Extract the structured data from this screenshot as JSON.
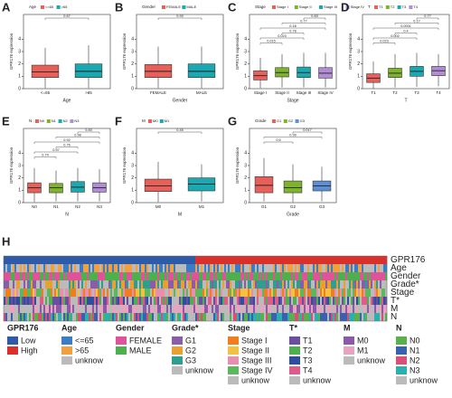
{
  "chart_data": [
    {
      "type": "box",
      "panel": "A",
      "legend_title": "Age",
      "categories": [
        "<=65",
        ">65"
      ],
      "colors": [
        "#e8605a",
        "#1aa9b0"
      ],
      "xlabel": "Age",
      "ylabel": "GPR176 expression",
      "ylim": [
        0,
        6
      ],
      "yticks": [
        0,
        1,
        2,
        3,
        4
      ],
      "boxes": [
        {
          "low": 0.05,
          "q1": 0.9,
          "median": 1.35,
          "q3": 1.9,
          "high": 3.3
        },
        {
          "low": 0.05,
          "q1": 0.9,
          "median": 1.4,
          "q3": 2.0,
          "high": 3.5
        }
      ],
      "comparisons": [
        {
          "pair": [
            0,
            1
          ],
          "p": 0.67
        }
      ]
    },
    {
      "type": "box",
      "panel": "B",
      "legend_title": "Gender",
      "categories": [
        "FEMALE",
        "MALE"
      ],
      "colors": [
        "#e8605a",
        "#1aa9b0"
      ],
      "xlabel": "Gender",
      "ylabel": "GPR176 expression",
      "ylim": [
        0,
        6
      ],
      "yticks": [
        0,
        1,
        2,
        3,
        4
      ],
      "boxes": [
        {
          "low": 0.05,
          "q1": 0.9,
          "median": 1.4,
          "q3": 1.95,
          "high": 3.4
        },
        {
          "low": 0.05,
          "q1": 0.9,
          "median": 1.4,
          "q3": 2.0,
          "high": 3.4
        }
      ],
      "comparisons": [
        {
          "pair": [
            0,
            1
          ],
          "p": 0.93
        }
      ]
    },
    {
      "type": "box",
      "panel": "C",
      "legend_title": "Stage",
      "categories": [
        "Stage I",
        "Stage II",
        "Stage III",
        "Stage IV"
      ],
      "colors": [
        "#e8605a",
        "#7fb32e",
        "#1aa9b0",
        "#b28dd6"
      ],
      "xlabel": "Stage",
      "ylabel": "GPR176 expression",
      "ylim": [
        0,
        6
      ],
      "yticks": [
        0,
        1,
        2,
        3,
        4
      ],
      "boxes": [
        {
          "low": 0.05,
          "q1": 0.7,
          "median": 1.05,
          "q3": 1.45,
          "high": 2.5
        },
        {
          "low": 0.1,
          "q1": 0.95,
          "median": 1.3,
          "q3": 1.7,
          "high": 2.8
        },
        {
          "low": 0.1,
          "q1": 0.9,
          "median": 1.3,
          "q3": 1.75,
          "high": 2.9
        },
        {
          "low": 0.1,
          "q1": 0.85,
          "median": 1.25,
          "q3": 1.7,
          "high": 2.9
        }
      ],
      "comparisons": [
        {
          "pair": [
            0,
            1
          ],
          "p": 0.015
        },
        {
          "pair": [
            0,
            2
          ],
          "p": 0.023
        },
        {
          "pair": [
            1,
            2
          ],
          "p": 0.78
        },
        {
          "pair": [
            0,
            3
          ],
          "p": 0.18
        },
        {
          "pair": [
            1,
            3
          ],
          "p": 0.77
        },
        {
          "pair": [
            2,
            3
          ],
          "p": 0.83
        }
      ]
    },
    {
      "type": "box",
      "panel": "D",
      "legend_title": "T",
      "categories": [
        "T1",
        "T2",
        "T3",
        "T4"
      ],
      "colors": [
        "#e8605a",
        "#7fb32e",
        "#1aa9b0",
        "#b28dd6"
      ],
      "xlabel": "T",
      "ylabel": "GPR176 expression",
      "ylim": [
        0,
        6
      ],
      "yticks": [
        0,
        1,
        2,
        3,
        4
      ],
      "boxes": [
        {
          "low": 0.0,
          "q1": 0.5,
          "median": 0.85,
          "q3": 1.2,
          "high": 2.2
        },
        {
          "low": 0.1,
          "q1": 0.9,
          "median": 1.25,
          "q3": 1.65,
          "high": 2.8
        },
        {
          "low": 0.15,
          "q1": 1.0,
          "median": 1.4,
          "q3": 1.8,
          "high": 2.9
        },
        {
          "low": 0.2,
          "q1": 1.05,
          "median": 1.45,
          "q3": 1.8,
          "high": 2.8
        }
      ],
      "comparisons": [
        {
          "pair": [
            0,
            1
          ],
          "p": 0.023
        },
        {
          "pair": [
            0,
            2
          ],
          "p": 0.002
        },
        {
          "pair": [
            1,
            2
          ],
          "p": 0.4
        },
        {
          "pair": [
            0,
            3
          ],
          "p": 0.0001
        },
        {
          "pair": [
            1,
            3
          ],
          "p": 0.17
        },
        {
          "pair": [
            2,
            3
          ],
          "p": 0.77
        }
      ]
    },
    {
      "type": "box",
      "panel": "E",
      "legend_title": "N",
      "categories": [
        "N0",
        "N1",
        "N2",
        "N3"
      ],
      "colors": [
        "#e8605a",
        "#7fb32e",
        "#1aa9b0",
        "#b28dd6"
      ],
      "xlabel": "N",
      "ylabel": "GPR176 expression",
      "ylim": [
        0,
        6
      ],
      "yticks": [
        0,
        1,
        2,
        3,
        4
      ],
      "boxes": [
        {
          "low": 0.05,
          "q1": 0.8,
          "median": 1.2,
          "q3": 1.6,
          "high": 2.8
        },
        {
          "low": 0.1,
          "q1": 0.8,
          "median": 1.2,
          "q3": 1.55,
          "high": 2.6
        },
        {
          "low": 0.1,
          "q1": 0.85,
          "median": 1.25,
          "q3": 1.7,
          "high": 2.8
        },
        {
          "low": 0.1,
          "q1": 0.85,
          "median": 1.2,
          "q3": 1.6,
          "high": 2.7
        }
      ],
      "comparisons": [
        {
          "pair": [
            0,
            1
          ],
          "p": 0.74
        },
        {
          "pair": [
            0,
            2
          ],
          "p": 0.97
        },
        {
          "pair": [
            1,
            2
          ],
          "p": 0.76
        },
        {
          "pair": [
            0,
            3
          ],
          "p": 0.92
        },
        {
          "pair": [
            1,
            3
          ],
          "p": 0.98
        },
        {
          "pair": [
            2,
            3
          ],
          "p": 0.83
        }
      ]
    },
    {
      "type": "box",
      "panel": "F",
      "legend_title": "M",
      "categories": [
        "M0",
        "M1"
      ],
      "colors": [
        "#e8605a",
        "#1aa9b0"
      ],
      "xlabel": "M",
      "ylabel": "GPR176 expression",
      "ylim": [
        0,
        6
      ],
      "yticks": [
        0,
        1,
        2,
        3,
        4
      ],
      "boxes": [
        {
          "low": 0.05,
          "q1": 0.9,
          "median": 1.35,
          "q3": 1.9,
          "high": 3.3
        },
        {
          "low": 0.1,
          "q1": 0.95,
          "median": 1.5,
          "q3": 2.0,
          "high": 3.1
        }
      ],
      "comparisons": [
        {
          "pair": [
            0,
            1
          ],
          "p": 0.45
        }
      ]
    },
    {
      "type": "box",
      "panel": "G",
      "legend_title": "Grade",
      "categories": [
        "G1",
        "G2",
        "G3"
      ],
      "colors": [
        "#e8605a",
        "#7fb32e",
        "#5b8fd6"
      ],
      "xlabel": "Grade",
      "ylabel": "GPR176 expression",
      "ylim": [
        0,
        6
      ],
      "yticks": [
        0,
        1,
        2,
        3,
        4
      ],
      "boxes": [
        {
          "low": 0.1,
          "q1": 0.8,
          "median": 1.4,
          "q3": 2.1,
          "high": 3.6
        },
        {
          "low": 0.05,
          "q1": 0.8,
          "median": 1.2,
          "q3": 1.75,
          "high": 3.1
        },
        {
          "low": 0.1,
          "q1": 0.95,
          "median": 1.35,
          "q3": 1.75,
          "high": 2.9
        }
      ],
      "comparisons": [
        {
          "pair": [
            0,
            1
          ],
          "p": 0.5
        },
        {
          "pair": [
            0,
            2
          ],
          "p": 0.99
        },
        {
          "pair": [
            1,
            2
          ],
          "p": 0.017
        }
      ]
    },
    {
      "type": "heatmap",
      "panel": "H",
      "tracks": [
        {
          "name": "GPR176",
          "levels": [
            {
              "name": "Low",
              "color": "#2f5aa8"
            },
            {
              "name": "High",
              "color": "#d9302b"
            }
          ]
        },
        {
          "name": "Age",
          "levels": [
            {
              "name": "<=65",
              "color": "#3b7dc4"
            },
            {
              "name": ">65",
              "color": "#f0a040"
            },
            {
              "name": "unknow",
              "color": "#bbbbbb"
            }
          ]
        },
        {
          "name": "Gender",
          "levels": [
            {
              "name": "FEMALE",
              "color": "#e0529a"
            },
            {
              "name": "MALE",
              "color": "#4cb04c"
            }
          ]
        },
        {
          "name": "Grade*",
          "levels": [
            {
              "name": "G1",
              "color": "#8b5ca8"
            },
            {
              "name": "G2",
              "color": "#e8a030"
            },
            {
              "name": "G3",
              "color": "#2f9e90"
            },
            {
              "name": "unknow",
              "color": "#bbbbbb"
            }
          ]
        },
        {
          "name": "Stage",
          "levels": [
            {
              "name": "Stage I",
              "color": "#f07e1e"
            },
            {
              "name": "Stage II",
              "color": "#f3c041"
            },
            {
              "name": "Stage III",
              "color": "#e88fb0"
            },
            {
              "name": "Stage IV",
              "color": "#5cb85c"
            },
            {
              "name": "unknow",
              "color": "#bbbbbb"
            }
          ]
        },
        {
          "name": "T*",
          "levels": [
            {
              "name": "T1",
              "color": "#6a4fa0"
            },
            {
              "name": "T2",
              "color": "#4caf50"
            },
            {
              "name": "T3",
              "color": "#2f4f9e"
            },
            {
              "name": "T4",
              "color": "#e05a8a"
            },
            {
              "name": "unknow",
              "color": "#bbbbbb"
            }
          ]
        },
        {
          "name": "M",
          "levels": [
            {
              "name": "M0",
              "color": "#8a5aa8"
            },
            {
              "name": "M1",
              "color": "#e8a3c0"
            },
            {
              "name": "unknow",
              "color": "#bbbbbb"
            }
          ]
        },
        {
          "name": "N",
          "levels": [
            {
              "name": "N0",
              "color": "#5ab04c"
            },
            {
              "name": "N1",
              "color": "#3a60b0"
            },
            {
              "name": "N2",
              "color": "#d94f7a"
            },
            {
              "name": "N3",
              "color": "#2ab0b0"
            },
            {
              "name": "unknow",
              "color": "#bbbbbb"
            }
          ]
        }
      ]
    }
  ]
}
